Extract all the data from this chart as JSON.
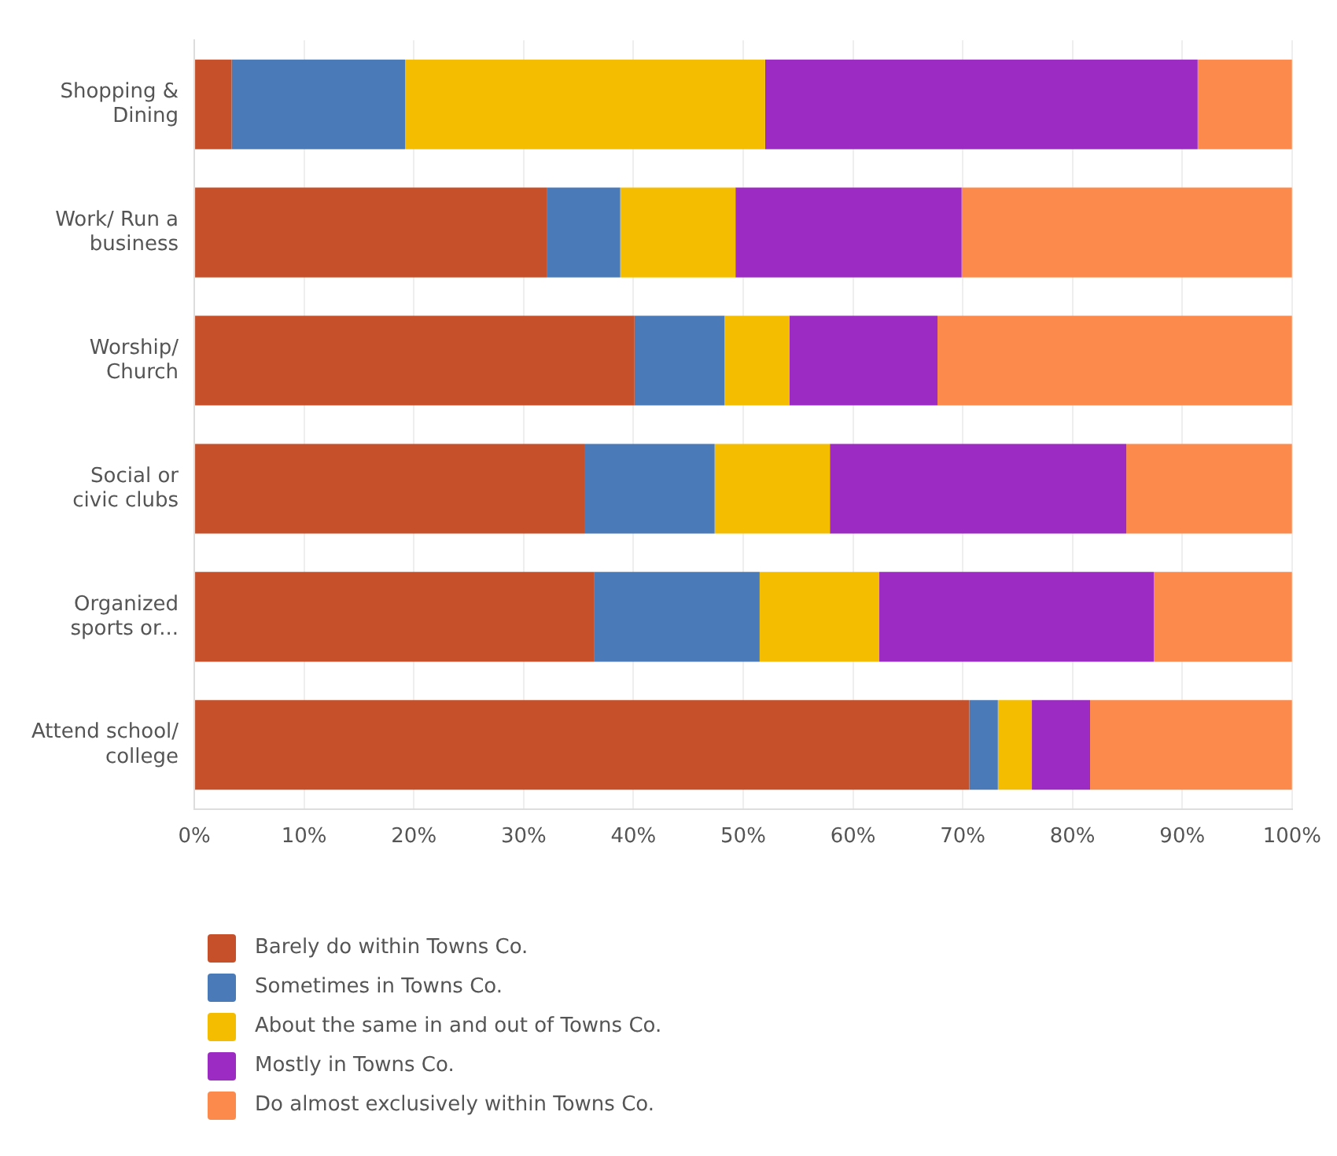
{
  "chart_data": {
    "type": "bar",
    "orientation": "horizontal",
    "stacked": true,
    "categories": [
      "Shopping & Dining",
      "Work/ Run a business",
      "Worship/ Church",
      "Social or civic clubs",
      "Organized sports or...",
      "Attend school/ college"
    ],
    "series": [
      {
        "name": "Barely do within Towns Co.",
        "color": "#c5502a",
        "values": [
          3.4,
          32.1,
          40.1,
          35.6,
          36.4,
          70.6
        ]
      },
      {
        "name": "Sometimes in Towns Co.",
        "color": "#4a7ab8",
        "values": [
          15.8,
          6.7,
          8.2,
          11.8,
          15.1,
          2.6
        ]
      },
      {
        "name": "About the same in and out of Towns Co.",
        "color": "#f5bd00",
        "values": [
          32.8,
          10.5,
          5.9,
          10.5,
          10.9,
          3.1
        ]
      },
      {
        "name": "Mostly in Towns Co.",
        "color": "#9b2bc2",
        "values": [
          39.4,
          20.6,
          13.5,
          27.0,
          25.0,
          5.3
        ]
      },
      {
        "name": "Do almost exclusively within Towns Co.",
        "color": "#fb8a4c",
        "values": [
          8.6,
          30.1,
          32.3,
          15.1,
          12.6,
          18.4
        ]
      }
    ],
    "xlim": [
      0,
      100
    ],
    "xticks": [
      {
        "value": 0,
        "label": "0%"
      },
      {
        "value": 10,
        "label": "10%"
      },
      {
        "value": 20,
        "label": "20%"
      },
      {
        "value": 30,
        "label": "30%"
      },
      {
        "value": 40,
        "label": "40%"
      },
      {
        "value": 50,
        "label": "50%"
      },
      {
        "value": 60,
        "label": "60%"
      },
      {
        "value": 70,
        "label": "70%"
      },
      {
        "value": 80,
        "label": "80%"
      },
      {
        "value": 90,
        "label": "90%"
      },
      {
        "value": 100,
        "label": "100%"
      }
    ],
    "grid": "x",
    "legend": "bottom"
  }
}
